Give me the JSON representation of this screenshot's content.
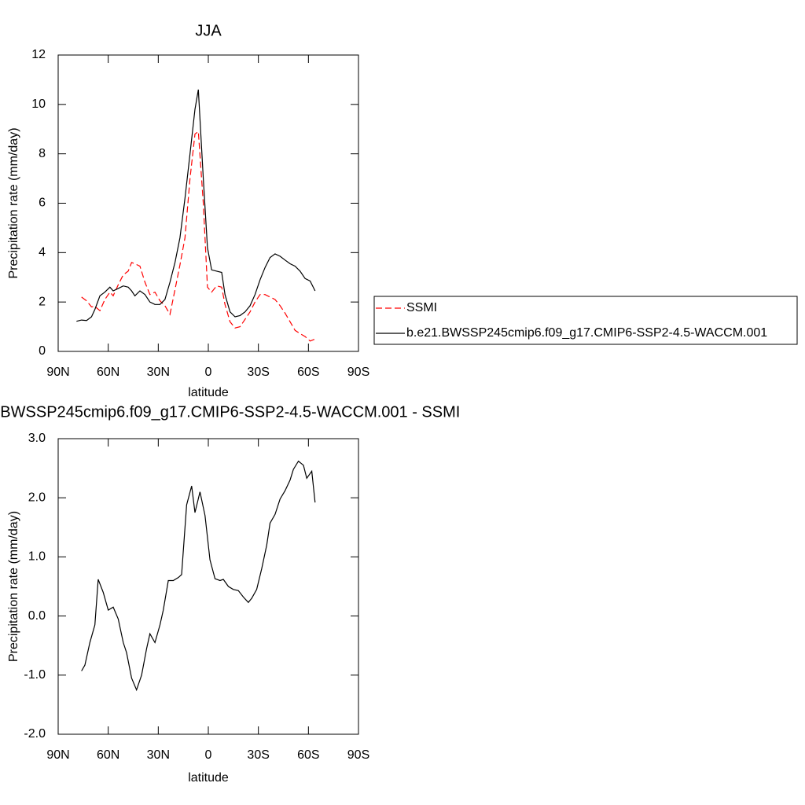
{
  "chart_data": [
    {
      "type": "line",
      "title": "JJA",
      "xlabel": "latitude",
      "ylabel": "Precipitation rate (mm/day)",
      "x": [
        79,
        76,
        73,
        70,
        68,
        65,
        62,
        59,
        57,
        54,
        51,
        48,
        46,
        44,
        41,
        38,
        35,
        32,
        29,
        26,
        23,
        20,
        17,
        14,
        11,
        8,
        6,
        3,
        0.5,
        -2,
        -5,
        -8,
        -10,
        -13,
        -16,
        -19,
        -22,
        -25,
        -28,
        -31,
        -34,
        -37,
        -40,
        -43,
        -46,
        -49,
        -52,
        -55,
        -58,
        -61,
        -64
      ],
      "series": [
        {
          "name": "SSMI",
          "color": "#ff0000",
          "dash": true,
          "values": [
            null,
            2.2,
            2.05,
            1.8,
            1.82,
            1.65,
            2.1,
            2.4,
            2.25,
            2.7,
            3.1,
            3.25,
            3.6,
            3.55,
            3.45,
            2.8,
            2.3,
            2.4,
            2.05,
            1.85,
            1.5,
            2.5,
            3.5,
            4.6,
            7.0,
            8.8,
            8.9,
            6.0,
            2.6,
            2.4,
            2.65,
            2.6,
            1.9,
            1.2,
            0.95,
            1.0,
            1.3,
            1.6,
            2.0,
            2.3,
            2.3,
            2.2,
            2.1,
            1.85,
            1.55,
            1.2,
            0.85,
            0.72,
            0.6,
            0.42,
            0.5
          ]
        },
        {
          "name": "b.e21.BWSSP245cmip6.f09_g17.CMIP6-SSP2-4.5-WACCM.001",
          "color": "#000000",
          "dash": false,
          "values": [
            1.22,
            1.27,
            1.25,
            1.4,
            1.7,
            2.25,
            2.4,
            2.6,
            2.45,
            2.55,
            2.65,
            2.6,
            2.45,
            2.25,
            2.45,
            2.3,
            2.0,
            1.9,
            1.9,
            2.1,
            2.8,
            3.6,
            4.6,
            6.2,
            8.0,
            9.8,
            10.6,
            7.0,
            4.2,
            3.3,
            3.25,
            3.2,
            2.3,
            1.6,
            1.4,
            1.45,
            1.6,
            1.85,
            2.3,
            2.9,
            3.4,
            3.8,
            3.95,
            3.85,
            3.7,
            3.55,
            3.45,
            3.25,
            2.95,
            2.85,
            2.45
          ]
        }
      ],
      "xlim": [
        90,
        -90
      ],
      "xticks": [
        {
          "value": 90,
          "label": "90N"
        },
        {
          "value": 60,
          "label": "60N"
        },
        {
          "value": 30,
          "label": "30N"
        },
        0,
        {
          "value": -30,
          "label": "30S"
        },
        {
          "value": -60,
          "label": "60S"
        },
        {
          "value": -90,
          "label": "90S"
        }
      ],
      "ylim": [
        0,
        12
      ],
      "yticks": [
        0,
        2,
        4,
        6,
        8,
        10,
        12
      ],
      "legend": "right"
    },
    {
      "type": "line",
      "title": "b.e21.BWSSP245cmip6.f09_g17.CMIP6-SSP2-4.5-WACCM.001 - SSMI",
      "xlabel": "latitude",
      "ylabel": "Precipitation rate (mm/day)",
      "x": [
        76,
        74,
        71,
        68,
        66,
        63,
        60,
        57,
        54,
        51,
        49,
        46,
        43,
        40,
        37,
        35,
        32,
        29,
        27,
        24,
        21,
        18,
        16,
        13,
        10,
        8,
        5,
        2,
        -1,
        -4,
        -7,
        -9,
        -12,
        -15,
        -18,
        -21,
        -24,
        -26,
        -29,
        -32,
        -35,
        -37,
        -40,
        -43,
        -46,
        -49,
        -51,
        -54,
        -57,
        -59,
        -62,
        -64
      ],
      "values": [
        -0.93,
        -0.83,
        -0.45,
        -0.15,
        0.62,
        0.4,
        0.1,
        0.15,
        -0.05,
        -0.45,
        -0.62,
        -1.05,
        -1.25,
        -1.0,
        -0.55,
        -0.3,
        -0.45,
        -0.15,
        0.1,
        0.6,
        0.6,
        0.65,
        0.7,
        1.88,
        2.2,
        1.75,
        2.1,
        1.7,
        0.95,
        0.63,
        0.6,
        0.62,
        0.5,
        0.45,
        0.43,
        0.32,
        0.23,
        0.3,
        0.45,
        0.8,
        1.2,
        1.57,
        1.72,
        1.98,
        2.12,
        2.3,
        2.48,
        2.62,
        2.55,
        2.33,
        2.45,
        1.92
      ],
      "color": "#000000",
      "xlim": [
        90,
        -90
      ],
      "xticks": [
        {
          "value": 90,
          "label": "90N"
        },
        {
          "value": 60,
          "label": "60N"
        },
        {
          "value": 30,
          "label": "30N"
        },
        0,
        {
          "value": -30,
          "label": "30S"
        },
        {
          "value": -60,
          "label": "60S"
        },
        {
          "value": -90,
          "label": "90S"
        }
      ],
      "ylim": [
        -2,
        3
      ],
      "yticks": [
        {
          "value": -2,
          "label": "-2.0"
        },
        {
          "value": -1,
          "label": "-1.0"
        },
        {
          "value": 0,
          "label": "0.0"
        },
        {
          "value": 1,
          "label": "1.0"
        },
        {
          "value": 2,
          "label": "2.0"
        },
        {
          "value": 3,
          "label": "3.0"
        }
      ]
    }
  ]
}
